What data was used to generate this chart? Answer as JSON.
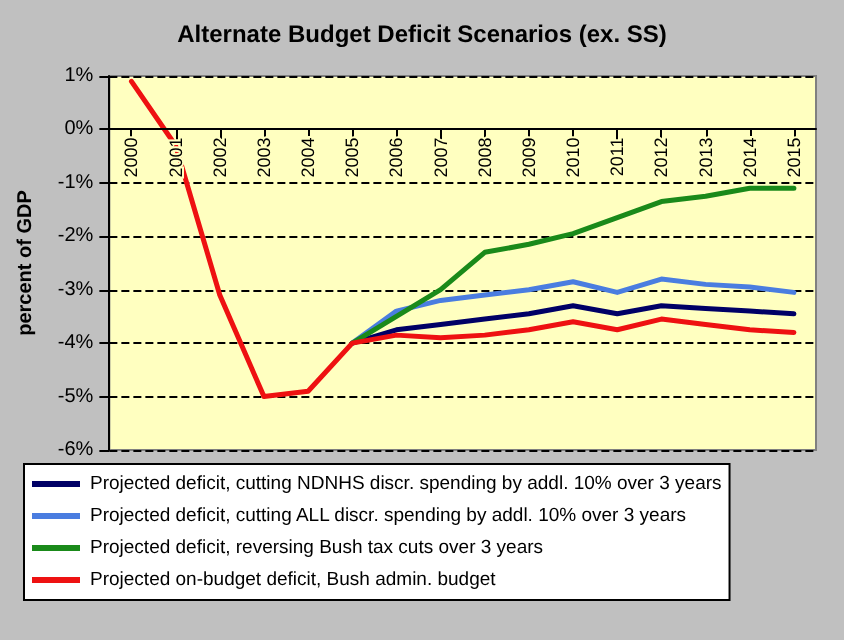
{
  "chart_data": {
    "type": "line",
    "title": "Alternate Budget Deficit Scenarios (ex. SS)",
    "ylabel": "percent of GDP",
    "categories": [
      "2000",
      "2001",
      "2002",
      "2003",
      "2004",
      "2005",
      "2006",
      "2007",
      "2008",
      "2009",
      "2010",
      "2011",
      "2012",
      "2013",
      "2014",
      "2015"
    ],
    "series": [
      {
        "name": "Projected deficit, cutting NDNHS discr. spending by addl. 10% over 3 years",
        "color": "#000066",
        "values": [
          null,
          null,
          null,
          null,
          null,
          -4.0,
          -3.75,
          -3.65,
          -3.55,
          -3.45,
          -3.3,
          -3.45,
          -3.3,
          -3.35,
          -3.4,
          -3.45
        ]
      },
      {
        "name": "Projected deficit, cutting ALL discr. spending by addl. 10% over 3 years",
        "color": "#4a7de0",
        "values": [
          null,
          null,
          null,
          null,
          null,
          -4.0,
          -3.4,
          -3.2,
          -3.1,
          -3.0,
          -2.85,
          -3.05,
          -2.8,
          -2.9,
          -2.95,
          -3.05
        ]
      },
      {
        "name": "Projected deficit, reversing Bush tax cuts over 3 years",
        "color": "#1a8a1a",
        "values": [
          null,
          null,
          null,
          null,
          null,
          -4.0,
          -3.5,
          -3.0,
          -2.3,
          -2.15,
          -1.95,
          -1.65,
          -1.35,
          -1.25,
          -1.1,
          -1.1
        ]
      },
      {
        "name": "Projected on-budget deficit, Bush admin. budget",
        "color": "#ee1111",
        "values": [
          0.9,
          -0.3,
          -3.1,
          -5.0,
          -4.9,
          -4.0,
          -3.85,
          -3.9,
          -3.85,
          -3.75,
          -3.6,
          -3.75,
          -3.55,
          -3.65,
          -3.75,
          -3.8
        ]
      }
    ],
    "ylim": [
      -6,
      1
    ],
    "yticks": [
      {
        "value": 1,
        "label": "1%"
      },
      {
        "value": 0,
        "label": "0%"
      },
      {
        "value": -1,
        "label": "-1%"
      },
      {
        "value": -2,
        "label": "-2%"
      },
      {
        "value": -3,
        "label": "-3%"
      },
      {
        "value": -4,
        "label": "-4%"
      },
      {
        "value": -5,
        "label": "-5%"
      },
      {
        "value": -6,
        "label": "-6%"
      }
    ],
    "grid": "y",
    "legend": "bottom",
    "marker": "none",
    "line_style": "solid"
  }
}
